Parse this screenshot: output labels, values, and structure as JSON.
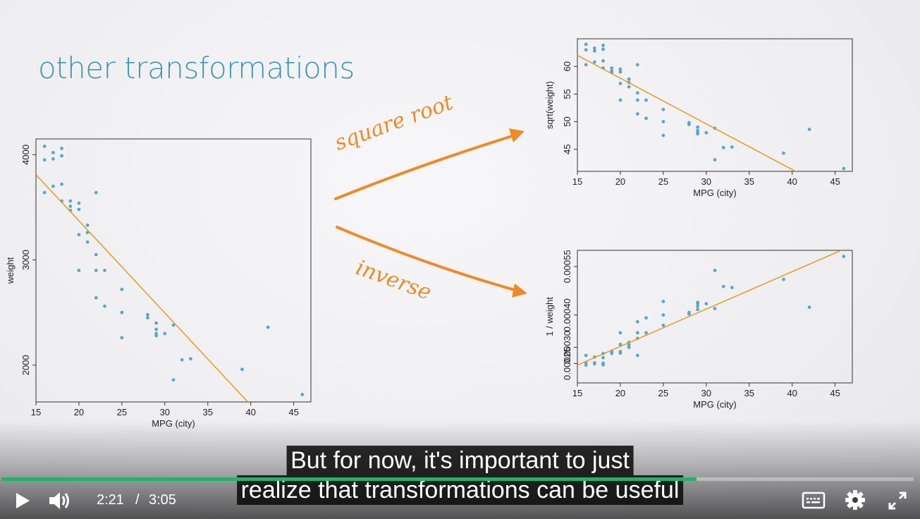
{
  "slide": {
    "title": "other transformations",
    "arrow_label_top": "square root",
    "arrow_label_bottom": "inverse"
  },
  "caption": {
    "line1": "But for now, it's important to just",
    "line2": "realize that transformations can be useful"
  },
  "player": {
    "current_time": "2:21",
    "separator": "/",
    "duration": "3:05",
    "progress": 0.762,
    "accent_color": "#1fb469",
    "icons": [
      "play-icon",
      "volume-icon",
      "captions-icon",
      "settings-icon",
      "fullscreen-icon"
    ]
  },
  "colors": {
    "title": "#3f95b5",
    "points": "#5da5c9",
    "fit_line": "#e3a02c",
    "hand_arrows": "#f08a24"
  },
  "chart_data": [
    {
      "type": "scatter",
      "xlabel": "MPG (city)",
      "ylabel": "weight",
      "xlim": [
        15,
        47
      ],
      "ylim": [
        1650,
        4150
      ],
      "xticks": [
        15,
        20,
        25,
        30,
        35,
        40,
        45
      ],
      "yticks": [
        2000,
        3000,
        4000
      ],
      "points": [
        [
          16,
          4080
        ],
        [
          16,
          3950
        ],
        [
          17,
          4020
        ],
        [
          17,
          3960
        ],
        [
          18,
          4060
        ],
        [
          18,
          3990
        ],
        [
          16,
          3640
        ],
        [
          17,
          3700
        ],
        [
          18,
          3720
        ],
        [
          18,
          3560
        ],
        [
          19,
          3560
        ],
        [
          19,
          3510
        ],
        [
          19,
          3470
        ],
        [
          20,
          3540
        ],
        [
          20,
          3480
        ],
        [
          22,
          3640
        ],
        [
          21,
          3330
        ],
        [
          21,
          3260
        ],
        [
          20,
          3240
        ],
        [
          21,
          3170
        ],
        [
          22,
          3050
        ],
        [
          23,
          2900
        ],
        [
          22,
          2900
        ],
        [
          20,
          2900
        ],
        [
          22,
          2640
        ],
        [
          23,
          2560
        ],
        [
          25,
          2720
        ],
        [
          25,
          2500
        ],
        [
          25,
          2260
        ],
        [
          28,
          2480
        ],
        [
          28,
          2450
        ],
        [
          29,
          2400
        ],
        [
          29,
          2340
        ],
        [
          29,
          2300
        ],
        [
          29,
          2280
        ],
        [
          31,
          2380
        ],
        [
          30,
          2300
        ],
        [
          32,
          2050
        ],
        [
          33,
          2060
        ],
        [
          31,
          1860
        ],
        [
          39,
          1960
        ],
        [
          42,
          2360
        ],
        [
          46,
          1720
        ]
      ],
      "fit_line": [
        [
          15,
          3810
        ],
        [
          40,
          1620
        ]
      ]
    },
    {
      "type": "scatter",
      "xlabel": "MPG (city)",
      "ylabel": "sqrt(weight)",
      "xlim": [
        15,
        47
      ],
      "ylim": [
        41,
        65
      ],
      "xticks": [
        15,
        20,
        25,
        30,
        35,
        40,
        45
      ],
      "yticks": [
        45,
        50,
        55,
        60
      ],
      "points": [
        [
          16,
          64
        ],
        [
          16,
          63
        ],
        [
          17,
          63.3
        ],
        [
          17,
          62.8
        ],
        [
          18,
          63.8
        ],
        [
          18,
          63.1
        ],
        [
          16,
          60.3
        ],
        [
          17,
          60.8
        ],
        [
          18,
          61
        ],
        [
          18,
          59.7
        ],
        [
          19,
          59.7
        ],
        [
          19,
          59.2
        ],
        [
          19,
          58.9
        ],
        [
          20,
          59.5
        ],
        [
          20,
          59
        ],
        [
          22,
          60.3
        ],
        [
          21,
          57.7
        ],
        [
          21,
          57.1
        ],
        [
          20,
          56.9
        ],
        [
          21,
          56.3
        ],
        [
          22,
          55.2
        ],
        [
          23,
          53.9
        ],
        [
          22,
          53.9
        ],
        [
          20,
          53.9
        ],
        [
          22,
          51.4
        ],
        [
          23,
          50.6
        ],
        [
          25,
          52.2
        ],
        [
          25,
          50
        ],
        [
          25,
          47.5
        ],
        [
          28,
          49.8
        ],
        [
          28,
          49.5
        ],
        [
          29,
          49
        ],
        [
          29,
          48.4
        ],
        [
          29,
          48
        ],
        [
          29,
          47.8
        ],
        [
          31,
          48.8
        ],
        [
          30,
          48
        ],
        [
          32,
          45.3
        ],
        [
          33,
          45.4
        ],
        [
          31,
          43.1
        ],
        [
          39,
          44.3
        ],
        [
          42,
          48.6
        ],
        [
          46,
          41.5
        ]
      ],
      "fit_line": [
        [
          15,
          62
        ],
        [
          41,
          40.5
        ]
      ]
    },
    {
      "type": "scatter",
      "xlabel": "MPG (city)",
      "ylabel": "1 / weight",
      "xlim": [
        15,
        47
      ],
      "ylim": [
        0.00019,
        0.0006
      ],
      "xticks": [
        15,
        20,
        25,
        30,
        35,
        40,
        45
      ],
      "yticks": [
        0.00025,
        0.0003,
        0.0004,
        0.00055
      ],
      "ytick_labels": [
        "0.00025",
        "0.00030",
        "0.00040",
        "0.00055"
      ],
      "points": [
        [
          16,
          0.000245
        ],
        [
          16,
          0.000253
        ],
        [
          17,
          0.000249
        ],
        [
          17,
          0.000252
        ],
        [
          18,
          0.000246
        ],
        [
          18,
          0.000251
        ],
        [
          16,
          0.000275
        ],
        [
          17,
          0.00027
        ],
        [
          18,
          0.000268
        ],
        [
          18,
          0.000281
        ],
        [
          19,
          0.000281
        ],
        [
          19,
          0.000285
        ],
        [
          19,
          0.000288
        ],
        [
          20,
          0.000282
        ],
        [
          20,
          0.000287
        ],
        [
          22,
          0.000275
        ],
        [
          21,
          0.0003
        ],
        [
          21,
          0.000307
        ],
        [
          20,
          0.000309
        ],
        [
          21,
          0.000315
        ],
        [
          22,
          0.000328
        ],
        [
          23,
          0.000345
        ],
        [
          22,
          0.000345
        ],
        [
          20,
          0.000345
        ],
        [
          22,
          0.000379
        ],
        [
          23,
          0.000391
        ],
        [
          25,
          0.000368
        ],
        [
          25,
          0.0004
        ],
        [
          25,
          0.000442
        ],
        [
          28,
          0.000403
        ],
        [
          28,
          0.000408
        ],
        [
          29,
          0.000417
        ],
        [
          29,
          0.000427
        ],
        [
          29,
          0.000435
        ],
        [
          29,
          0.000439
        ],
        [
          31,
          0.00042
        ],
        [
          30,
          0.000435
        ],
        [
          32,
          0.000488
        ],
        [
          33,
          0.000485
        ],
        [
          31,
          0.000538
        ],
        [
          39,
          0.00051
        ],
        [
          42,
          0.000424
        ],
        [
          46,
          0.000581
        ]
      ],
      "fit_line": [
        [
          15,
          0.000245
        ],
        [
          45.7,
          0.0006
        ]
      ]
    }
  ]
}
